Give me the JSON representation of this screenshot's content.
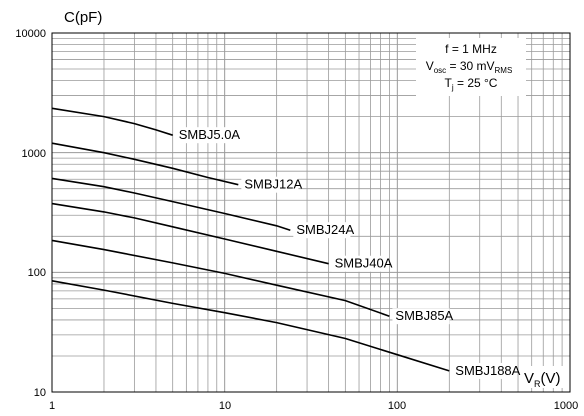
{
  "chart_data": {
    "type": "line",
    "xscale": "log",
    "yscale": "log",
    "xlim": [
      1,
      1000
    ],
    "ylim": [
      10,
      10000
    ],
    "xticks": [
      "1",
      "10",
      "100",
      "1000"
    ],
    "yticks": [
      "10",
      "100",
      "1000",
      "10000"
    ],
    "grid": true,
    "ylabel": "C(pF)",
    "xlabel": {
      "main": "V",
      "sub": "R",
      "tail": "(V)"
    },
    "conditions": {
      "line1": "f = 1 MHz",
      "line2": {
        "a": "V",
        "a_sub": "osc",
        "b": " = 30 mV",
        "b_sub": "RMS"
      },
      "line3": {
        "a": "T",
        "a_sub": "j",
        "b": " = 25 °C"
      }
    },
    "series": [
      {
        "name": "SMBJ5.0A",
        "x": [
          1,
          2,
          3,
          4,
          5
        ],
        "y": [
          2350,
          2000,
          1750,
          1550,
          1400
        ]
      },
      {
        "name": "SMBJ12A",
        "x": [
          1,
          2,
          3,
          5,
          8,
          12
        ],
        "y": [
          1200,
          1000,
          880,
          740,
          620,
          540
        ]
      },
      {
        "name": "SMBJ24A",
        "x": [
          1,
          2,
          3,
          5,
          10,
          20,
          24
        ],
        "y": [
          610,
          520,
          460,
          390,
          310,
          245,
          225
        ]
      },
      {
        "name": "SMBJ40A",
        "x": [
          1,
          2,
          3,
          5,
          10,
          20,
          40
        ],
        "y": [
          375,
          320,
          285,
          240,
          190,
          150,
          118
        ]
      },
      {
        "name": "SMBJ85A",
        "x": [
          1,
          2,
          5,
          10,
          20,
          50,
          90
        ],
        "y": [
          185,
          155,
          120,
          98,
          78,
          58,
          43
        ]
      },
      {
        "name": "SMBJ188A",
        "x": [
          1,
          2,
          5,
          10,
          20,
          50,
          100,
          200
        ],
        "y": [
          85,
          71,
          55,
          46,
          38,
          28,
          20.5,
          15
        ]
      }
    ]
  }
}
